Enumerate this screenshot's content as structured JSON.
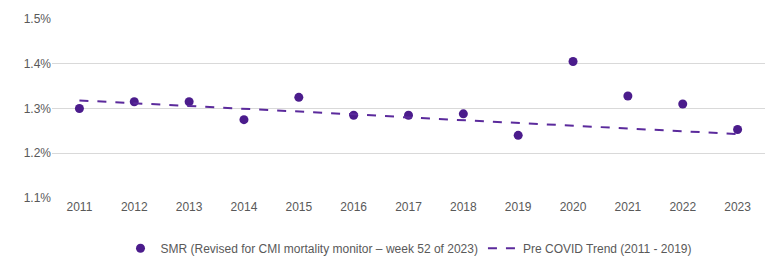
{
  "chart_data": {
    "type": "scatter",
    "categories": [
      "2011",
      "2012",
      "2013",
      "2014",
      "2015",
      "2016",
      "2017",
      "2018",
      "2019",
      "2020",
      "2021",
      "2022",
      "2023"
    ],
    "series": [
      {
        "name": "SMR (Revised for CMI mortality monitor – week 52 of 2023)",
        "type": "scatter",
        "marker": "circle",
        "color": "#4b1c8c",
        "values": [
          1.3,
          1.315,
          1.315,
          1.275,
          1.325,
          1.285,
          1.285,
          1.288,
          1.24,
          1.405,
          1.328,
          1.31,
          1.253
        ]
      },
      {
        "name": "Pre COVID Trend (2011 - 2019)",
        "type": "line",
        "line_style": "dash",
        "color": "#5b2a9c",
        "values": [
          1.318,
          1.312,
          1.305,
          1.299,
          1.293,
          1.287,
          1.28,
          1.274,
          1.268,
          1.262,
          1.255,
          1.249,
          1.243
        ]
      }
    ],
    "ylim": [
      1.1,
      1.5
    ],
    "yticks": [
      {
        "value": 1.1,
        "label": "1.1%"
      },
      {
        "value": 1.2,
        "label": "1.2%"
      },
      {
        "value": 1.3,
        "label": "1.3%"
      },
      {
        "value": 1.4,
        "label": "1.4%"
      },
      {
        "value": 1.5,
        "label": "1.5%"
      }
    ],
    "grid": true,
    "legend": "bottom"
  }
}
